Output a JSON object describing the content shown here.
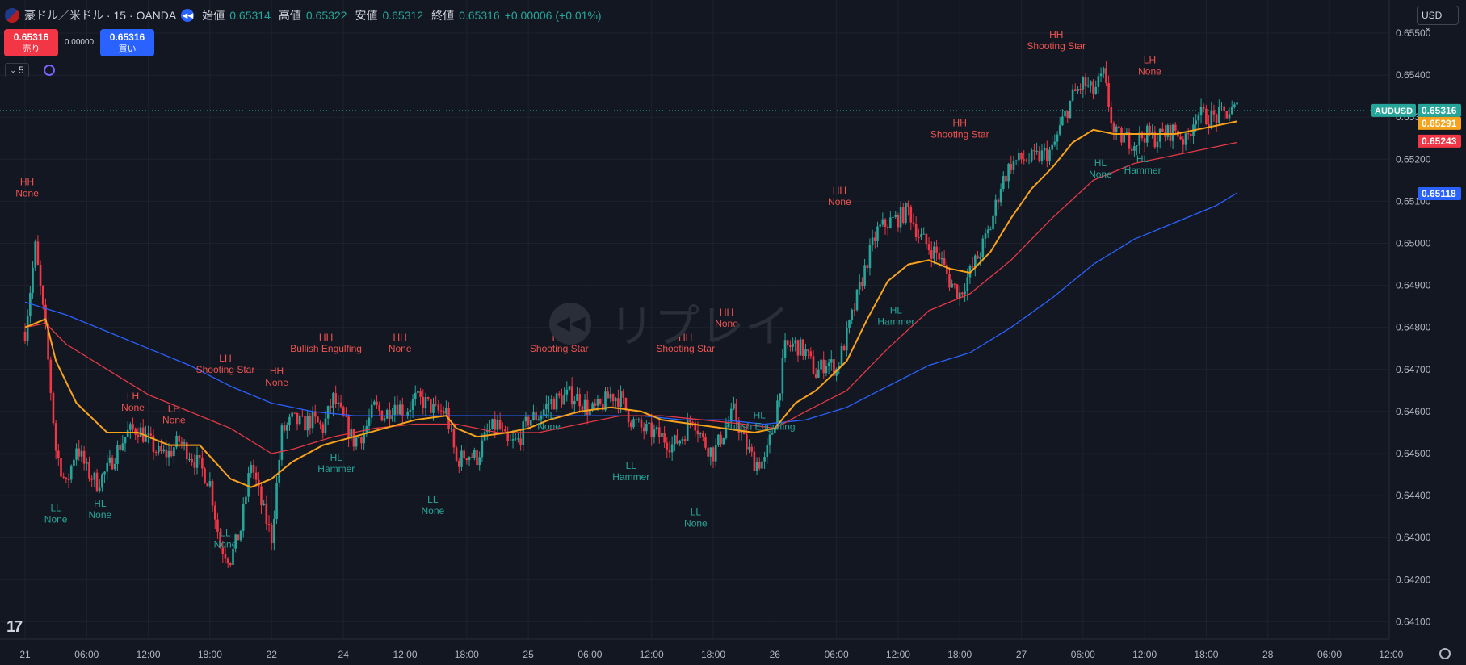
{
  "header": {
    "title": "豪ドル／米ドル · 15 · OANDA",
    "open_label": "始値",
    "open": "0.65314",
    "high_label": "高値",
    "high": "0.65322",
    "low_label": "安値",
    "low": "0.65312",
    "close_label": "終値",
    "close": "0.65316",
    "change": "+0.00006 (+0.01%)",
    "icons": [
      "flag-icon",
      "replay-icon"
    ]
  },
  "trade": {
    "sell_price": "0.65316",
    "sell_label": "売り",
    "buy_price": "0.65316",
    "buy_label": "買い",
    "spread": "0.00000"
  },
  "indicators_count": "5",
  "currency": "USD",
  "watermark": "リプレイ",
  "colors": {
    "background": "#131722",
    "up": "#26a69a",
    "down": "#f23645",
    "ema_fast": "#f7a21b",
    "ema_mid": "#e53945",
    "ema_slow": "#2962ff",
    "label_high": "#ef5350",
    "label_low": "#26a69a"
  },
  "chart_data": {
    "type": "candlestick",
    "symbol": "AUDUSD",
    "timeframe": "15",
    "ylim": [
      0.64085,
      0.6558
    ],
    "yticks": [
      "0.65500",
      "0.65400",
      "0.65300",
      "0.65200",
      "0.65100",
      "0.65000",
      "0.64900",
      "0.64800",
      "0.64700",
      "0.64600",
      "0.64500",
      "0.64400",
      "0.64300",
      "0.64200",
      "0.64100"
    ],
    "xlim_hours": [
      -1,
      163
    ],
    "xticks": [
      {
        "t": 0,
        "label": "21"
      },
      {
        "t": 6,
        "label": "06:00"
      },
      {
        "t": 12,
        "label": "12:00"
      },
      {
        "t": 18,
        "label": "18:00"
      },
      {
        "t": 24,
        "label": "22"
      },
      {
        "t": 31,
        "label": "24"
      },
      {
        "t": 37,
        "label": "12:00"
      },
      {
        "t": 43,
        "label": "18:00"
      },
      {
        "t": 49,
        "label": "25"
      },
      {
        "t": 55,
        "label": "06:00"
      },
      {
        "t": 61,
        "label": "12:00"
      },
      {
        "t": 67,
        "label": "18:00"
      },
      {
        "t": 73,
        "label": "26"
      },
      {
        "t": 79,
        "label": "06:00"
      },
      {
        "t": 85,
        "label": "12:00"
      },
      {
        "t": 91,
        "label": "18:00"
      },
      {
        "t": 97,
        "label": "27"
      },
      {
        "t": 103,
        "label": "06:00"
      },
      {
        "t": 109,
        "label": "12:00"
      },
      {
        "t": 115,
        "label": "18:00"
      },
      {
        "t": 121,
        "label": "28"
      },
      {
        "t": 127,
        "label": "06:00"
      },
      {
        "t": 133,
        "label": "12:00"
      }
    ],
    "price_path": [
      [
        0,
        0.6479
      ],
      [
        1,
        0.6499
      ],
      [
        2,
        0.6479
      ],
      [
        3,
        0.6451
      ],
      [
        4,
        0.6442
      ],
      [
        5,
        0.6452
      ],
      [
        6,
        0.6446
      ],
      [
        7,
        0.6443
      ],
      [
        8,
        0.6446
      ],
      [
        9,
        0.6451
      ],
      [
        10,
        0.6455
      ],
      [
        11,
        0.6456
      ],
      [
        12,
        0.6453
      ],
      [
        13,
        0.645
      ],
      [
        14,
        0.645
      ],
      [
        15,
        0.6453
      ],
      [
        16,
        0.645
      ],
      [
        17,
        0.6447
      ],
      [
        18,
        0.6443
      ],
      [
        19,
        0.6428
      ],
      [
        20,
        0.6425
      ],
      [
        21,
        0.6432
      ],
      [
        22,
        0.6448
      ],
      [
        23,
        0.6438
      ],
      [
        24,
        0.643
      ],
      [
        25,
        0.6455
      ],
      [
        26,
        0.6458
      ],
      [
        27,
        0.6457
      ],
      [
        28,
        0.6458
      ],
      [
        29,
        0.6456
      ],
      [
        30,
        0.6463
      ],
      [
        31,
        0.6458
      ],
      [
        32,
        0.6453
      ],
      [
        33,
        0.6455
      ],
      [
        34,
        0.6461
      ],
      [
        35,
        0.6459
      ],
      [
        36,
        0.6462
      ],
      [
        37,
        0.646
      ],
      [
        38,
        0.6463
      ],
      [
        39,
        0.6462
      ],
      [
        40,
        0.646
      ],
      [
        41,
        0.646
      ],
      [
        42,
        0.6448
      ],
      [
        43,
        0.645
      ],
      [
        44,
        0.6449
      ],
      [
        45,
        0.6455
      ],
      [
        46,
        0.6457
      ],
      [
        47,
        0.6452
      ],
      [
        48,
        0.6453
      ],
      [
        49,
        0.6458
      ],
      [
        50,
        0.6459
      ],
      [
        51,
        0.6462
      ],
      [
        52,
        0.6463
      ],
      [
        53,
        0.6464
      ],
      [
        54,
        0.6463
      ],
      [
        55,
        0.646
      ],
      [
        56,
        0.6461
      ],
      [
        57,
        0.6464
      ],
      [
        58,
        0.6463
      ],
      [
        59,
        0.6458
      ],
      [
        60,
        0.6456
      ],
      [
        61,
        0.6455
      ],
      [
        62,
        0.6454
      ],
      [
        63,
        0.6452
      ],
      [
        64,
        0.6454
      ],
      [
        65,
        0.6459
      ],
      [
        66,
        0.6453
      ],
      [
        67,
        0.645
      ],
      [
        68,
        0.6455
      ],
      [
        69,
        0.646
      ],
      [
        70,
        0.6453
      ],
      [
        71,
        0.6448
      ],
      [
        72,
        0.6448
      ],
      [
        73,
        0.6458
      ],
      [
        74,
        0.6475
      ],
      [
        75,
        0.6476
      ],
      [
        76,
        0.6474
      ],
      [
        77,
        0.6469
      ],
      [
        78,
        0.6472
      ],
      [
        79,
        0.647
      ],
      [
        80,
        0.6478
      ],
      [
        81,
        0.6487
      ],
      [
        82,
        0.6496
      ],
      [
        83,
        0.6503
      ],
      [
        84,
        0.6505
      ],
      [
        85,
        0.6506
      ],
      [
        86,
        0.6508
      ],
      [
        87,
        0.6502
      ],
      [
        88,
        0.6499
      ],
      [
        89,
        0.6497
      ],
      [
        90,
        0.6491
      ],
      [
        91,
        0.6488
      ],
      [
        92,
        0.6493
      ],
      [
        93,
        0.6498
      ],
      [
        94,
        0.6504
      ],
      [
        95,
        0.6514
      ],
      [
        96,
        0.6519
      ],
      [
        97,
        0.652
      ],
      [
        98,
        0.652
      ],
      [
        99,
        0.6521
      ],
      [
        100,
        0.6522
      ],
      [
        101,
        0.6529
      ],
      [
        102,
        0.6535
      ],
      [
        103,
        0.6538
      ],
      [
        104,
        0.6536
      ],
      [
        105,
        0.654
      ],
      [
        106,
        0.6526
      ],
      [
        107,
        0.6525
      ],
      [
        108,
        0.6524
      ],
      [
        109,
        0.6526
      ],
      [
        110,
        0.6525
      ],
      [
        111,
        0.6526
      ],
      [
        112,
        0.6527
      ],
      [
        113,
        0.6524
      ],
      [
        114,
        0.6531
      ],
      [
        115,
        0.653
      ],
      [
        116,
        0.653
      ],
      [
        117,
        0.6531
      ],
      [
        118,
        0.6532
      ]
    ],
    "ema_fast": [
      [
        0,
        0.648
      ],
      [
        2,
        0.6482
      ],
      [
        3,
        0.6472
      ],
      [
        5,
        0.6462
      ],
      [
        8,
        0.6455
      ],
      [
        11,
        0.6455
      ],
      [
        14,
        0.6452
      ],
      [
        17,
        0.6452
      ],
      [
        20,
        0.6444
      ],
      [
        22,
        0.6442
      ],
      [
        24,
        0.6444
      ],
      [
        26,
        0.6448
      ],
      [
        29,
        0.6452
      ],
      [
        32,
        0.6454
      ],
      [
        35,
        0.6456
      ],
      [
        38,
        0.6458
      ],
      [
        41,
        0.6459
      ],
      [
        42,
        0.6456
      ],
      [
        44,
        0.6454
      ],
      [
        47,
        0.6455
      ],
      [
        49,
        0.6456
      ],
      [
        51,
        0.6458
      ],
      [
        54,
        0.646
      ],
      [
        57,
        0.6461
      ],
      [
        60,
        0.646
      ],
      [
        62,
        0.6458
      ],
      [
        65,
        0.6457
      ],
      [
        68,
        0.6456
      ],
      [
        71,
        0.6455
      ],
      [
        73,
        0.6456
      ],
      [
        75,
        0.6462
      ],
      [
        77,
        0.6465
      ],
      [
        80,
        0.6472
      ],
      [
        82,
        0.6482
      ],
      [
        84,
        0.6491
      ],
      [
        86,
        0.6495
      ],
      [
        88,
        0.6496
      ],
      [
        90,
        0.6494
      ],
      [
        92,
        0.6493
      ],
      [
        94,
        0.6498
      ],
      [
        96,
        0.6506
      ],
      [
        98,
        0.6513
      ],
      [
        100,
        0.6518
      ],
      [
        102,
        0.6524
      ],
      [
        104,
        0.6527
      ],
      [
        106,
        0.6526
      ],
      [
        108,
        0.6526
      ],
      [
        110,
        0.6526
      ],
      [
        112,
        0.6526
      ],
      [
        114,
        0.6527
      ],
      [
        116,
        0.6528
      ],
      [
        118,
        0.6529
      ]
    ],
    "ema_mid": [
      [
        0,
        0.648
      ],
      [
        2,
        0.6481
      ],
      [
        4,
        0.6476
      ],
      [
        8,
        0.647
      ],
      [
        12,
        0.6464
      ],
      [
        16,
        0.646
      ],
      [
        20,
        0.6456
      ],
      [
        24,
        0.645
      ],
      [
        26,
        0.6451
      ],
      [
        30,
        0.6454
      ],
      [
        34,
        0.6456
      ],
      [
        38,
        0.6457
      ],
      [
        42,
        0.6457
      ],
      [
        46,
        0.6455
      ],
      [
        50,
        0.6455
      ],
      [
        54,
        0.6457
      ],
      [
        58,
        0.6459
      ],
      [
        62,
        0.6459
      ],
      [
        66,
        0.6458
      ],
      [
        70,
        0.6457
      ],
      [
        73,
        0.6456
      ],
      [
        76,
        0.646
      ],
      [
        80,
        0.6465
      ],
      [
        84,
        0.6475
      ],
      [
        88,
        0.6484
      ],
      [
        92,
        0.6488
      ],
      [
        96,
        0.6496
      ],
      [
        100,
        0.6506
      ],
      [
        104,
        0.6515
      ],
      [
        108,
        0.6519
      ],
      [
        112,
        0.6521
      ],
      [
        116,
        0.6523
      ],
      [
        118,
        0.6524
      ]
    ],
    "ema_slow": [
      [
        0,
        0.6486
      ],
      [
        4,
        0.6483
      ],
      [
        8,
        0.6479
      ],
      [
        12,
        0.6475
      ],
      [
        16,
        0.6471
      ],
      [
        20,
        0.6466
      ],
      [
        24,
        0.6462
      ],
      [
        28,
        0.646
      ],
      [
        32,
        0.6459
      ],
      [
        36,
        0.6459
      ],
      [
        40,
        0.6459
      ],
      [
        44,
        0.6459
      ],
      [
        48,
        0.6459
      ],
      [
        52,
        0.6459
      ],
      [
        56,
        0.6459
      ],
      [
        60,
        0.6459
      ],
      [
        64,
        0.6458
      ],
      [
        68,
        0.6458
      ],
      [
        72,
        0.6457
      ],
      [
        76,
        0.6458
      ],
      [
        80,
        0.6461
      ],
      [
        84,
        0.6466
      ],
      [
        88,
        0.6471
      ],
      [
        92,
        0.6474
      ],
      [
        96,
        0.648
      ],
      [
        100,
        0.6487
      ],
      [
        104,
        0.6495
      ],
      [
        108,
        0.6501
      ],
      [
        112,
        0.6505
      ],
      [
        116,
        0.6509
      ],
      [
        118,
        0.6512
      ]
    ],
    "price_labels": [
      {
        "symbol": "AUDUSD",
        "value": "0.65316",
        "color": "#26a69a"
      },
      {
        "value": "0.65291",
        "color": "#f7a21b"
      },
      {
        "value": "0.65243",
        "color": "#f23645"
      },
      {
        "value": "0.65118",
        "color": "#2962ff"
      }
    ],
    "annotations": [
      {
        "t": 0.2,
        "price": 0.651,
        "pos": "above",
        "kind": "high",
        "line1": "HH",
        "line2": "None"
      },
      {
        "t": 3.0,
        "price": 0.6439,
        "pos": "below",
        "kind": "low",
        "line1": "LL",
        "line2": "None"
      },
      {
        "t": 7.3,
        "price": 0.644,
        "pos": "below",
        "kind": "low",
        "line1": "HL",
        "line2": "None"
      },
      {
        "t": 10.5,
        "price": 0.6459,
        "pos": "above",
        "kind": "high",
        "line1": "LH",
        "line2": "None"
      },
      {
        "t": 14.5,
        "price": 0.6456,
        "pos": "above",
        "kind": "high",
        "line1": "LH",
        "line2": "None"
      },
      {
        "t": 19.5,
        "price": 0.6468,
        "pos": "above",
        "kind": "high",
        "line1": "LH",
        "line2": "Shooting Star"
      },
      {
        "t": 19.5,
        "price": 0.6433,
        "pos": "below",
        "kind": "low",
        "line1": "LL",
        "line2": "None"
      },
      {
        "t": 24.5,
        "price": 0.6465,
        "pos": "above",
        "kind": "high",
        "line1": "HH",
        "line2": "None"
      },
      {
        "t": 29.3,
        "price": 0.6473,
        "pos": "above",
        "kind": "high",
        "line1": "HH",
        "line2": "Bullish Engulfing"
      },
      {
        "t": 30.3,
        "price": 0.6451,
        "pos": "below",
        "kind": "low",
        "line1": "HL",
        "line2": "Hammer"
      },
      {
        "t": 36.5,
        "price": 0.6473,
        "pos": "above",
        "kind": "high",
        "line1": "HH",
        "line2": "None"
      },
      {
        "t": 39.7,
        "price": 0.6441,
        "pos": "below",
        "kind": "low",
        "line1": "LL",
        "line2": "None"
      },
      {
        "t": 51.0,
        "price": 0.6461,
        "pos": "below",
        "kind": "low",
        "line1": "HL",
        "line2": "None"
      },
      {
        "t": 52.0,
        "price": 0.6473,
        "pos": "above",
        "kind": "high",
        "line1": "HH",
        "line2": "Shooting Star"
      },
      {
        "t": 59.0,
        "price": 0.6449,
        "pos": "below",
        "kind": "low",
        "line1": "LL",
        "line2": "Hammer"
      },
      {
        "t": 64.3,
        "price": 0.6473,
        "pos": "above",
        "kind": "high",
        "line1": "HH",
        "line2": "Shooting Star"
      },
      {
        "t": 65.3,
        "price": 0.6438,
        "pos": "below",
        "kind": "low",
        "line1": "LL",
        "line2": "None"
      },
      {
        "t": 68.3,
        "price": 0.6479,
        "pos": "above",
        "kind": "high",
        "line1": "HH",
        "line2": "None"
      },
      {
        "t": 71.5,
        "price": 0.6461,
        "pos": "below",
        "kind": "low",
        "line1": "HL",
        "line2": "Bullish Engulfing"
      },
      {
        "t": 79.3,
        "price": 0.6508,
        "pos": "above",
        "kind": "high",
        "line1": "HH",
        "line2": "None"
      },
      {
        "t": 84.8,
        "price": 0.6486,
        "pos": "below",
        "kind": "low",
        "line1": "HL",
        "line2": "Hammer"
      },
      {
        "t": 91.0,
        "price": 0.6524,
        "pos": "above",
        "kind": "high",
        "line1": "HH",
        "line2": "Shooting Star"
      },
      {
        "t": 100.4,
        "price": 0.6545,
        "pos": "above",
        "kind": "high",
        "line1": "HH",
        "line2": "Shooting Star"
      },
      {
        "t": 104.7,
        "price": 0.6521,
        "pos": "below",
        "kind": "low",
        "line1": "HL",
        "line2": "None"
      },
      {
        "t": 108.8,
        "price": 0.6522,
        "pos": "below",
        "kind": "low",
        "line1": "HL",
        "line2": "Hammer"
      },
      {
        "t": 109.5,
        "price": 0.6539,
        "pos": "above",
        "kind": "high",
        "line1": "LH",
        "line2": "None"
      }
    ]
  }
}
